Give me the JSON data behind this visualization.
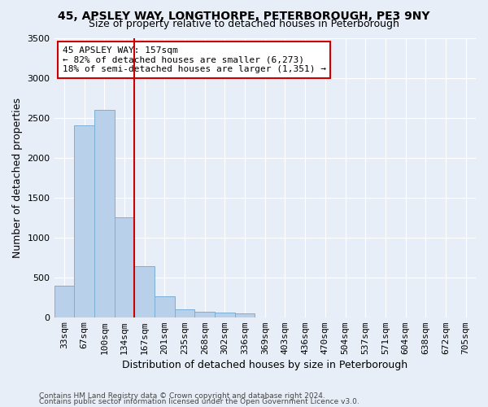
{
  "title_line1": "45, APSLEY WAY, LONGTHORPE, PETERBOROUGH, PE3 9NY",
  "title_line2": "Size of property relative to detached houses in Peterborough",
  "xlabel": "Distribution of detached houses by size in Peterborough",
  "ylabel": "Number of detached properties",
  "footer_line1": "Contains HM Land Registry data © Crown copyright and database right 2024.",
  "footer_line2": "Contains public sector information licensed under the Open Government Licence v3.0.",
  "categories": [
    "33sqm",
    "67sqm",
    "100sqm",
    "134sqm",
    "167sqm",
    "201sqm",
    "235sqm",
    "268sqm",
    "302sqm",
    "336sqm",
    "369sqm",
    "403sqm",
    "436sqm",
    "470sqm",
    "504sqm",
    "537sqm",
    "571sqm",
    "604sqm",
    "638sqm",
    "672sqm",
    "705sqm"
  ],
  "values": [
    390,
    2400,
    2600,
    1250,
    640,
    260,
    100,
    65,
    60,
    45,
    0,
    0,
    0,
    0,
    0,
    0,
    0,
    0,
    0,
    0,
    0
  ],
  "bar_color": "#b8d0ea",
  "bar_edgecolor": "#7bafd4",
  "vline_x_index": 3.5,
  "vline_color": "#cc0000",
  "annotation_line1": "45 APSLEY WAY: 157sqm",
  "annotation_line2": "← 82% of detached houses are smaller (6,273)",
  "annotation_line3": "18% of semi-detached houses are larger (1,351) →",
  "annotation_box_edgecolor": "#cc0000",
  "ylim": [
    0,
    3500
  ],
  "yticks": [
    0,
    500,
    1000,
    1500,
    2000,
    2500,
    3000,
    3500
  ],
  "bg_color": "#e8eef7",
  "grid_color": "#ffffff",
  "title_fontsize": 10,
  "subtitle_fontsize": 9,
  "ylabel_fontsize": 9,
  "xlabel_fontsize": 9,
  "tick_fontsize": 8,
  "footer_fontsize": 6.5
}
